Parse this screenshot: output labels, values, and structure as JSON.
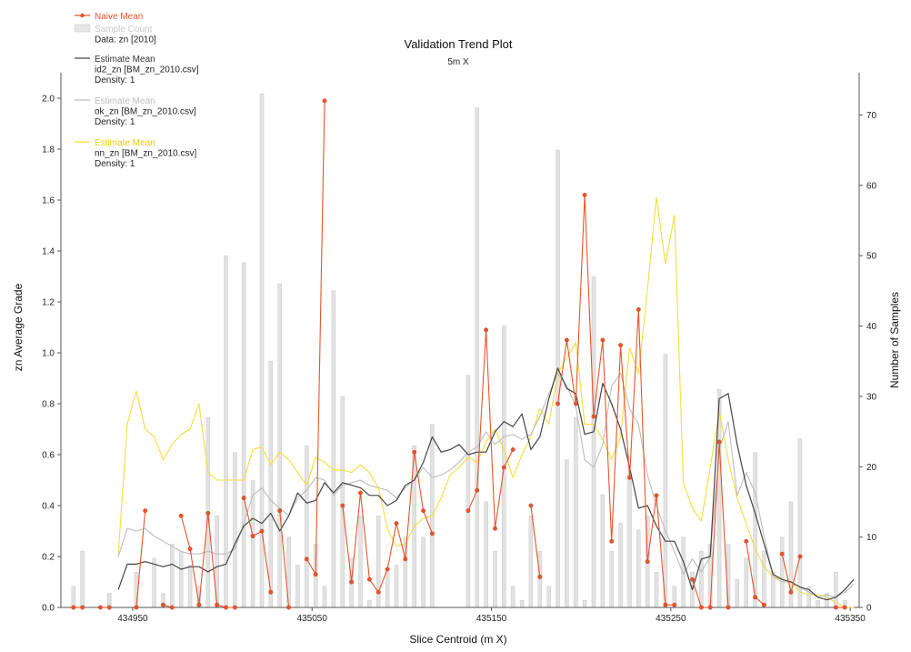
{
  "chart_data": {
    "type": "line",
    "title": "Validation Trend Plot",
    "subtitle": "5m X",
    "xlabel": "Slice Centroid (m X)",
    "ylabel": "zn Average Grade",
    "y2label": "Number of Samples",
    "xlim": [
      434910,
      435355
    ],
    "ylim": [
      0,
      2.1
    ],
    "y2lim": [
      0,
      76
    ],
    "xticks": [
      434950,
      435050,
      435150,
      435250,
      435350
    ],
    "yticks": [
      0.0,
      0.2,
      0.4,
      0.6,
      0.8,
      1.0,
      1.2,
      1.4,
      1.6,
      1.8,
      2.0
    ],
    "y2ticks": [
      0,
      10,
      20,
      30,
      40,
      50,
      60,
      70
    ],
    "legend_position": "top-left",
    "legend": [
      {
        "key": "naive",
        "lines": [
          "Naive Mean"
        ],
        "style": "line-dot",
        "color": "#e8542a",
        "text_color": "#e8542a"
      },
      {
        "key": "count",
        "lines": [
          "Sample Count",
          "Data: zn [2010]"
        ],
        "style": "bar",
        "color": "#d7d7d7",
        "text_color": "#c8c8c8"
      },
      {
        "key": "id2",
        "lines": [
          "Estimate Mean",
          "id2_zn [BM_zn_2010.csv]",
          "Density: 1"
        ],
        "style": "line",
        "color": "#444444",
        "text_color": "#333333"
      },
      {
        "key": "ok",
        "lines": [
          "Estimate Mean",
          "ok_zn [BM_zn_2010.csv]",
          "Density: 1"
        ],
        "style": "line",
        "color": "#bdbdbd",
        "text_color": "#bdbdbd"
      },
      {
        "key": "nn",
        "lines": [
          "Estimate Mean",
          "nn_zn [BM_zn_2010.csv]",
          "Density: 1"
        ],
        "style": "line",
        "color": "#f5dd3a",
        "text_color": "#e6c90a"
      }
    ],
    "sample_count": {
      "name": "Sample Count",
      "color": "#d7d7d7",
      "x": [
        434917,
        434922,
        434937,
        434952,
        434962,
        434967,
        434972,
        434977,
        434982,
        434987,
        434992,
        434997,
        435002,
        435007,
        435012,
        435017,
        435022,
        435027,
        435032,
        435037,
        435042,
        435047,
        435052,
        435057,
        435062,
        435067,
        435072,
        435077,
        435082,
        435087,
        435092,
        435097,
        435102,
        435107,
        435112,
        435117,
        435137,
        435142,
        435147,
        435152,
        435157,
        435162,
        435167,
        435172,
        435177,
        435182,
        435187,
        435192,
        435197,
        435202,
        435207,
        435212,
        435217,
        435222,
        435227,
        435232,
        435237,
        435242,
        435247,
        435252,
        435257,
        435262,
        435267,
        435272,
        435277,
        435282,
        435287,
        435292,
        435297,
        435302,
        435307,
        435312,
        435317,
        435322,
        435327,
        435332,
        435337,
        435342,
        435347
      ],
      "values": [
        3,
        8,
        2,
        5,
        7,
        2,
        9,
        8,
        6,
        3,
        27,
        13,
        50,
        22,
        49,
        18,
        73,
        35,
        46,
        10,
        6,
        23,
        9,
        3,
        45,
        30,
        7,
        13,
        1,
        13,
        5,
        6,
        10,
        23,
        10,
        26,
        33,
        71,
        15,
        8,
        40,
        3,
        1,
        13,
        8,
        3,
        65,
        21,
        27,
        1,
        47,
        16,
        8,
        12,
        19,
        11,
        13,
        5,
        36,
        3,
        10,
        5,
        8,
        9,
        31,
        9,
        4,
        7,
        22,
        8,
        5,
        10,
        15,
        24,
        3,
        1,
        2,
        5,
        1
      ]
    },
    "series": [
      {
        "name": "Naive Mean",
        "color": "#e8542a",
        "markers": true,
        "segments": [
          {
            "x": [
              434917,
              434922
            ],
            "y": [
              0.0,
              0.0
            ]
          },
          {
            "x": [
              434932,
              434937
            ],
            "y": [
              0.0,
              0.0
            ]
          },
          {
            "x": [
              434952,
              434957
            ],
            "y": [
              0.0,
              0.38
            ]
          },
          {
            "x": [
              434967,
              434972
            ],
            "y": [
              0.01,
              0.0
            ]
          },
          {
            "x": [
              434977,
              434982,
              434987,
              434992,
              434997,
              435002,
              435007
            ],
            "y": [
              0.36,
              0.23,
              0.01,
              0.37,
              0.01,
              0.0,
              0.0
            ]
          },
          {
            "x": [
              435012,
              435017,
              435022,
              435027
            ],
            "y": [
              0.43,
              0.28,
              0.3,
              0.06
            ]
          },
          {
            "x": [
              435032,
              435037
            ],
            "y": [
              0.38,
              0.0
            ]
          },
          {
            "x": [
              435047,
              435052,
              435057
            ],
            "y": [
              0.19,
              0.13,
              1.99
            ]
          },
          {
            "x": [
              435067,
              435072,
              435077,
              435082,
              435087,
              435092,
              435097,
              435102,
              435107,
              435112,
              435117
            ],
            "y": [
              0.4,
              0.1,
              0.45,
              0.11,
              0.06,
              0.15,
              0.33,
              0.19,
              0.61,
              0.38,
              0.29
            ]
          },
          {
            "x": [
              435137,
              435142,
              435147,
              435152,
              435157,
              435162
            ],
            "y": [
              0.38,
              0.46,
              1.09,
              0.31,
              0.55,
              0.62
            ]
          },
          {
            "x": [
              435172,
              435177
            ],
            "y": [
              0.4,
              0.12
            ]
          },
          {
            "x": [
              435187,
              435192,
              435197,
              435202,
              435207,
              435212,
              435217,
              435222,
              435227,
              435232,
              435237,
              435242,
              435247,
              435252
            ],
            "y": [
              0.8,
              1.05,
              0.8,
              1.62,
              0.75,
              1.05,
              0.26,
              1.03,
              0.51,
              1.17,
              0.18,
              0.44,
              0.01,
              0.01
            ]
          },
          {
            "x": [
              435262,
              435267,
              435272,
              435277,
              435282
            ],
            "y": [
              0.11,
              0.0,
              0.0,
              0.65,
              0.0
            ]
          },
          {
            "x": [
              435292,
              435297,
              435302
            ],
            "y": [
              0.26,
              0.04,
              0.01
            ]
          },
          {
            "x": [
              435312,
              435317,
              435322
            ],
            "y": [
              0.21,
              0.06,
              0.2
            ]
          },
          {
            "x": [
              435342,
              435347
            ],
            "y": [
              0.0,
              0.0
            ]
          }
        ]
      },
      {
        "name": "Estimate Mean",
        "color": "#444444",
        "segments": [
          {
            "x": [
              434942,
              434947,
              434952,
              434957,
              434962,
              434967,
              434972,
              434977,
              434982,
              434987,
              434992,
              434997,
              435002,
              435007,
              435012,
              435017,
              435022,
              435027,
              435032,
              435037,
              435042,
              435047,
              435052,
              435057,
              435062,
              435067,
              435072,
              435077,
              435082,
              435087,
              435092,
              435097,
              435102,
              435107,
              435112,
              435117,
              435122,
              435127,
              435132,
              435137,
              435142,
              435147,
              435152,
              435157,
              435162,
              435167,
              435172,
              435177,
              435182,
              435187,
              435192,
              435197,
              435202,
              435207,
              435212,
              435217,
              435222,
              435227,
              435232,
              435237,
              435242,
              435247,
              435252,
              435257,
              435262,
              435267,
              435272,
              435277,
              435282,
              435287,
              435292,
              435297,
              435302,
              435307,
              435312,
              435317,
              435322,
              435327,
              435332,
              435337,
              435342,
              435347,
              435352
            ],
            "y": [
              0.07,
              0.17,
              0.17,
              0.18,
              0.17,
              0.16,
              0.17,
              0.15,
              0.16,
              0.16,
              0.14,
              0.16,
              0.17,
              0.25,
              0.32,
              0.35,
              0.33,
              0.37,
              0.3,
              0.36,
              0.45,
              0.41,
              0.42,
              0.49,
              0.45,
              0.49,
              0.48,
              0.47,
              0.44,
              0.44,
              0.4,
              0.42,
              0.48,
              0.5,
              0.57,
              0.67,
              0.61,
              0.62,
              0.64,
              0.6,
              0.61,
              0.61,
              0.69,
              0.73,
              0.71,
              0.76,
              0.62,
              0.67,
              0.82,
              0.94,
              0.86,
              0.84,
              0.68,
              0.69,
              0.88,
              0.8,
              0.7,
              0.55,
              0.39,
              0.4,
              0.32,
              0.26,
              0.26,
              0.18,
              0.07,
              0.19,
              0.2,
              0.82,
              0.84,
              0.64,
              0.48,
              0.37,
              0.25,
              0.13,
              0.11,
              0.1,
              0.08,
              0.07,
              0.04,
              0.03,
              0.04,
              0.07,
              0.11
            ]
          }
        ]
      },
      {
        "name": "Estimate Mean",
        "color": "#bdbdbd",
        "segments": [
          {
            "x": [
              434942,
              434947,
              434952,
              434957,
              434962,
              434967,
              434972,
              434977,
              434982,
              434987,
              434992,
              434997,
              435002,
              435007,
              435012,
              435017,
              435022,
              435027,
              435032,
              435037,
              435042,
              435047,
              435052,
              435057,
              435062,
              435067,
              435072,
              435077,
              435082,
              435087,
              435092,
              435097,
              435102,
              435107,
              435112,
              435117,
              435122,
              435127,
              435132,
              435137,
              435142,
              435147,
              435152,
              435157,
              435162,
              435167,
              435172,
              435177,
              435182,
              435187,
              435192,
              435197,
              435202,
              435207,
              435212,
              435217,
              435222,
              435227,
              435232,
              435237,
              435242,
              435247,
              435252,
              435257,
              435262,
              435267,
              435272,
              435277,
              435282,
              435287,
              435292,
              435297,
              435302,
              435307,
              435312,
              435317,
              435322,
              435327,
              435332,
              435337,
              435342,
              435347,
              435352
            ],
            "y": [
              0.2,
              0.31,
              0.3,
              0.31,
              0.28,
              0.26,
              0.24,
              0.22,
              0.21,
              0.21,
              0.22,
              0.21,
              0.21,
              0.23,
              0.33,
              0.44,
              0.47,
              0.42,
              0.39,
              0.36,
              0.43,
              0.46,
              0.51,
              0.5,
              0.44,
              0.48,
              0.49,
              0.5,
              0.48,
              0.47,
              0.46,
              0.43,
              0.47,
              0.5,
              0.55,
              0.51,
              0.52,
              0.54,
              0.57,
              0.61,
              0.63,
              0.69,
              0.64,
              0.67,
              0.68,
              0.66,
              0.68,
              0.75,
              0.84,
              0.92,
              0.87,
              0.79,
              0.58,
              0.55,
              0.64,
              0.87,
              0.92,
              0.78,
              0.72,
              0.52,
              0.4,
              0.3,
              0.22,
              0.13,
              0.19,
              0.14,
              0.2,
              0.62,
              0.73,
              0.44,
              0.53,
              0.45,
              0.28,
              0.12,
              0.1,
              0.1,
              0.08,
              0.06,
              0.04,
              0.05,
              0.04,
              0.06,
              0.09
            ]
          }
        ]
      },
      {
        "name": "Estimate Mean",
        "color": "#f5dd3a",
        "segments": [
          {
            "x": [
              434942,
              434947,
              434952,
              434957,
              434962,
              434967,
              434972,
              434977,
              434982,
              434987,
              434992,
              434997,
              435002,
              435007,
              435012,
              435017,
              435022,
              435027,
              435032,
              435037,
              435042,
              435047,
              435052,
              435057,
              435062,
              435067,
              435072,
              435077,
              435082,
              435087,
              435092,
              435097,
              435102,
              435107,
              435112,
              435117,
              435122,
              435127,
              435132,
              435137,
              435142,
              435147,
              435152,
              435157,
              435162,
              435167,
              435172,
              435177,
              435182,
              435187,
              435192,
              435197,
              435202,
              435207,
              435212,
              435217,
              435222,
              435227,
              435232,
              435237,
              435242,
              435247,
              435252,
              435257,
              435262,
              435267,
              435272,
              435277,
              435282,
              435287,
              435292,
              435297,
              435302,
              435307,
              435312,
              435317,
              435322,
              435327,
              435332,
              435337,
              435342,
              435347,
              435352
            ],
            "y": [
              0.21,
              0.72,
              0.85,
              0.7,
              0.67,
              0.58,
              0.64,
              0.68,
              0.7,
              0.8,
              0.53,
              0.5,
              0.5,
              0.5,
              0.5,
              0.62,
              0.63,
              0.56,
              0.61,
              0.58,
              0.53,
              0.48,
              0.59,
              0.57,
              0.54,
              0.54,
              0.53,
              0.56,
              0.53,
              0.47,
              0.31,
              0.24,
              0.25,
              0.32,
              0.35,
              0.36,
              0.43,
              0.52,
              0.55,
              0.59,
              0.57,
              0.65,
              0.7,
              0.62,
              0.51,
              0.6,
              0.67,
              0.78,
              0.72,
              0.92,
              0.98,
              1.04,
              0.72,
              0.72,
              0.66,
              0.58,
              0.67,
              1.02,
              0.92,
              1.25,
              1.61,
              1.35,
              1.54,
              0.49,
              0.39,
              0.34,
              0.55,
              0.77,
              0.58,
              0.43,
              0.33,
              0.23,
              0.16,
              0.12,
              0.11,
              0.1,
              0.06,
              0.05,
              0.05,
              0.04,
              0.02,
              0.0,
              0.0
            ]
          }
        ]
      }
    ]
  }
}
